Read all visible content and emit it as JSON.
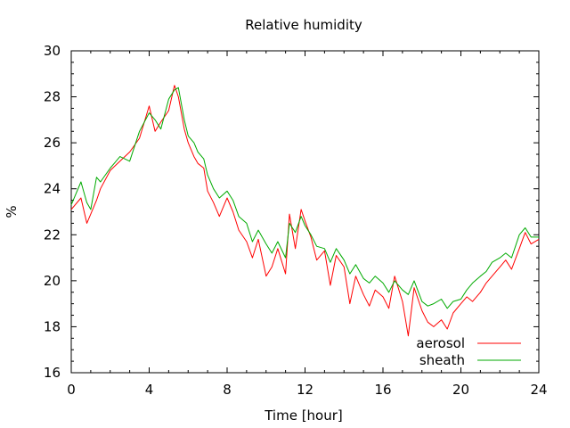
{
  "chart_data": {
    "type": "line",
    "title": "Relative humidity",
    "xlabel": "Time [hour]",
    "ylabel": "%",
    "xlim": [
      0,
      24
    ],
    "ylim": [
      16,
      30
    ],
    "xticks": [
      0,
      4,
      8,
      12,
      16,
      20,
      24
    ],
    "yticks": [
      16,
      18,
      20,
      22,
      24,
      26,
      28,
      30
    ],
    "grid": false,
    "legend_position": "bottom-right",
    "series": [
      {
        "name": "aerosol",
        "color": "#ff0000",
        "x": [
          0,
          0.5,
          0.8,
          1.0,
          1.3,
          1.5,
          2.0,
          2.5,
          3.0,
          3.5,
          4.0,
          4.3,
          4.6,
          5.0,
          5.3,
          5.5,
          5.8,
          6.0,
          6.3,
          6.5,
          6.8,
          7.0,
          7.3,
          7.6,
          8.0,
          8.3,
          8.6,
          9.0,
          9.3,
          9.6,
          10.0,
          10.3,
          10.6,
          11.0,
          11.2,
          11.5,
          11.8,
          12.0,
          12.3,
          12.6,
          13.0,
          13.3,
          13.6,
          14.0,
          14.3,
          14.6,
          15.0,
          15.3,
          15.6,
          16.0,
          16.3,
          16.6,
          17.0,
          17.3,
          17.6,
          18.0,
          18.3,
          18.6,
          19.0,
          19.3,
          19.6,
          20.0,
          20.3,
          20.6,
          21.0,
          21.3,
          21.6,
          22.0,
          22.3,
          22.6,
          23.0,
          23.3,
          23.6,
          24.0
        ],
        "y": [
          23.1,
          23.6,
          22.5,
          22.9,
          23.5,
          24.0,
          24.8,
          25.2,
          25.6,
          26.2,
          27.6,
          26.5,
          26.9,
          27.4,
          28.5,
          28.0,
          26.6,
          26.0,
          25.4,
          25.1,
          24.9,
          23.9,
          23.4,
          22.8,
          23.6,
          23.0,
          22.2,
          21.7,
          21.0,
          21.8,
          20.2,
          20.6,
          21.4,
          20.3,
          22.9,
          21.4,
          23.1,
          22.6,
          21.9,
          20.9,
          21.3,
          19.8,
          21.1,
          20.6,
          19.0,
          20.2,
          19.4,
          18.9,
          19.6,
          19.3,
          18.8,
          20.2,
          19.1,
          17.6,
          19.7,
          18.7,
          18.2,
          18.0,
          18.3,
          17.9,
          18.6,
          19.0,
          19.3,
          19.1,
          19.5,
          19.9,
          20.2,
          20.6,
          20.9,
          20.5,
          21.4,
          22.1,
          21.6,
          21.8
        ]
      },
      {
        "name": "sheath",
        "color": "#00aa00",
        "x": [
          0,
          0.5,
          0.8,
          1.0,
          1.3,
          1.5,
          2.0,
          2.5,
          3.0,
          3.5,
          4.0,
          4.3,
          4.6,
          5.0,
          5.3,
          5.5,
          5.8,
          6.0,
          6.3,
          6.5,
          6.8,
          7.0,
          7.3,
          7.6,
          8.0,
          8.3,
          8.6,
          9.0,
          9.3,
          9.6,
          10.0,
          10.3,
          10.6,
          11.0,
          11.2,
          11.5,
          11.8,
          12.0,
          12.3,
          12.6,
          13.0,
          13.3,
          13.6,
          14.0,
          14.3,
          14.6,
          15.0,
          15.3,
          15.6,
          16.0,
          16.3,
          16.6,
          17.0,
          17.3,
          17.6,
          18.0,
          18.3,
          18.6,
          19.0,
          19.3,
          19.6,
          20.0,
          20.3,
          20.6,
          21.0,
          21.3,
          21.6,
          22.0,
          22.3,
          22.6,
          23.0,
          23.3,
          23.6,
          24.0
        ],
        "y": [
          23.3,
          24.3,
          23.4,
          23.1,
          24.5,
          24.3,
          24.9,
          25.4,
          25.2,
          26.5,
          27.3,
          27.0,
          26.6,
          27.9,
          28.3,
          28.4,
          27.0,
          26.3,
          26.0,
          25.6,
          25.3,
          24.6,
          24.0,
          23.6,
          23.9,
          23.5,
          22.8,
          22.5,
          21.7,
          22.2,
          21.6,
          21.2,
          21.7,
          21.0,
          22.5,
          22.1,
          22.8,
          22.4,
          22.0,
          21.5,
          21.4,
          20.8,
          21.4,
          20.9,
          20.3,
          20.7,
          20.1,
          19.9,
          20.2,
          19.9,
          19.5,
          20.0,
          19.6,
          19.4,
          20.0,
          19.1,
          18.9,
          19.0,
          19.2,
          18.8,
          19.1,
          19.2,
          19.6,
          19.9,
          20.2,
          20.4,
          20.8,
          21.0,
          21.2,
          21.0,
          22.0,
          22.3,
          21.9,
          21.9
        ]
      }
    ]
  }
}
